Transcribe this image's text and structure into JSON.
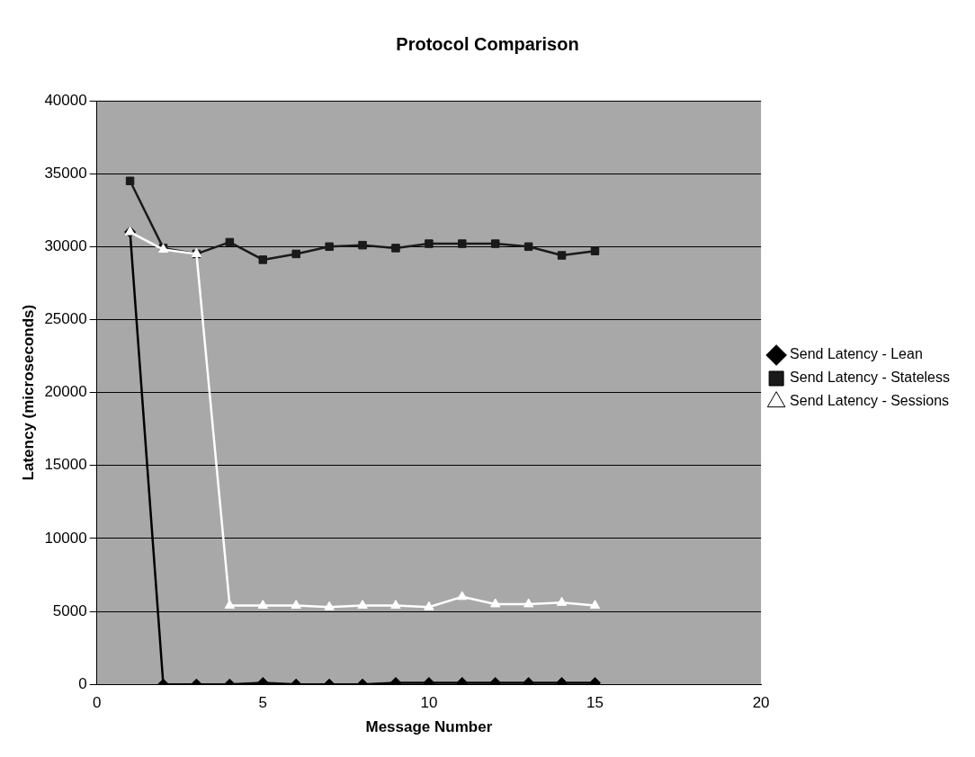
{
  "chart_data": {
    "type": "line",
    "title": "Protocol Comparison",
    "xlabel": "Message Number",
    "ylabel": "Latency (microseconds)",
    "x": [
      1,
      2,
      3,
      4,
      5,
      6,
      7,
      8,
      9,
      10,
      11,
      12,
      13,
      14,
      15
    ],
    "xlim": [
      0,
      20
    ],
    "xticks": [
      0,
      5,
      10,
      15,
      20
    ],
    "ylim": [
      0,
      40000
    ],
    "yticks": [
      0,
      5000,
      10000,
      15000,
      20000,
      25000,
      30000,
      35000,
      40000
    ],
    "grid": "y",
    "legend": "right",
    "line_style": "solid",
    "series": [
      {
        "name": "Send Latency - Lean",
        "color": "#000000",
        "marker": "diamond",
        "values": [
          31000,
          0,
          0,
          0,
          100,
          0,
          0,
          0,
          100,
          100,
          100,
          100,
          100,
          100,
          100
        ]
      },
      {
        "name": "Send Latency - Stateless",
        "color": "#1a1a1a",
        "marker": "square",
        "values": [
          34500,
          29900,
          29500,
          30300,
          29100,
          29500,
          30000,
          30100,
          29900,
          30200,
          30200,
          30200,
          30000,
          29400,
          29700
        ]
      },
      {
        "name": "Send Latency - Sessions",
        "color": "#ffffff",
        "marker": "triangle",
        "values": [
          31000,
          29800,
          29500,
          5400,
          5400,
          5400,
          5300,
          5400,
          5400,
          5300,
          6000,
          5500,
          5500,
          5600,
          5400
        ]
      }
    ]
  }
}
